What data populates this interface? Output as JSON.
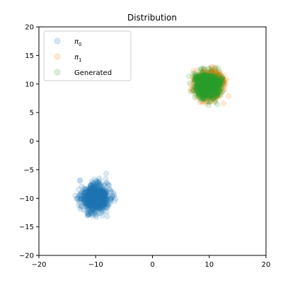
{
  "chart_data": {
    "type": "scatter",
    "title": "Distribution",
    "xlabel": "",
    "ylabel": "",
    "xlim": [
      -20,
      20
    ],
    "ylim": [
      -20,
      20
    ],
    "xticks": [
      -20,
      -10,
      0,
      10,
      20
    ],
    "yticks": [
      -20,
      -15,
      -10,
      -5,
      0,
      5,
      10,
      15,
      20
    ],
    "grid": false,
    "legend_position": "upper-left",
    "marker_alpha": 0.15,
    "series": [
      {
        "name": "π₀",
        "label_base": "π",
        "label_sub": "0",
        "color": "#1f77b4",
        "center": [
          -10,
          -10
        ],
        "spread": 1.2,
        "points": 900,
        "seed": 11
      },
      {
        "name": "π₁",
        "label_base": "π",
        "label_sub": "1",
        "color": "#ff7f0e",
        "center": [
          10,
          10
        ],
        "spread": 1.1,
        "points": 900,
        "seed": 23
      },
      {
        "name": "Generated",
        "label_base": "Generated",
        "label_sub": "",
        "color": "#2ca02c",
        "center": [
          9.8,
          9.8
        ],
        "spread": 1.1,
        "points": 900,
        "seed": 37
      }
    ]
  }
}
